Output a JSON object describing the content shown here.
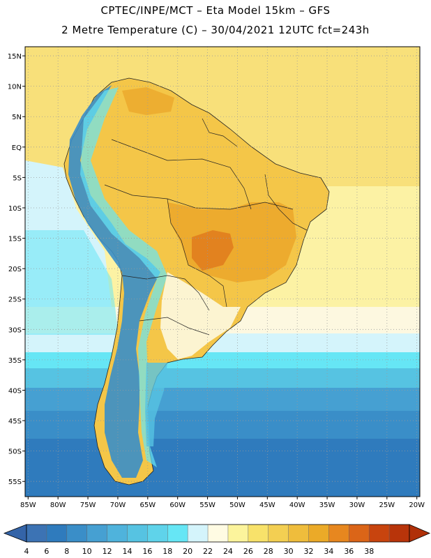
{
  "title_line1": "CPTEC/INPE/MCT –  Eta Model 15km – GFS",
  "title_line2": "2 Metre Temperature (C) – 30/04/2021 12UTC fct=243h",
  "lat_labels": [
    "15N",
    "10N",
    "5N",
    "EQ",
    "5S",
    "10S",
    "15S",
    "20S",
    "25S",
    "30S",
    "35S",
    "40S",
    "45S",
    "50S",
    "55S"
  ],
  "lat_values": [
    15,
    10,
    5,
    0,
    -5,
    -10,
    -15,
    -20,
    -25,
    -30,
    -35,
    -40,
    -45,
    -50,
    -55
  ],
  "lon_labels": [
    "85W",
    "80W",
    "75W",
    "70W",
    "65W",
    "60W",
    "55W",
    "50W",
    "45W",
    "40W",
    "35W",
    "30W",
    "25W",
    "20W"
  ],
  "lon_values": [
    -85,
    -80,
    -75,
    -70,
    -65,
    -60,
    -55,
    -50,
    -45,
    -40,
    -35,
    -30,
    -25,
    -20
  ],
  "extent": {
    "lon_min": -85.5,
    "lon_max": -19.5,
    "lat_min": -57.5,
    "lat_max": 16.5
  },
  "colorbar": {
    "ticks": [
      "4",
      "6",
      "8",
      "10",
      "12",
      "14",
      "16",
      "18",
      "20",
      "22",
      "24",
      "26",
      "28",
      "30",
      "32",
      "34",
      "36",
      "38"
    ],
    "colors": [
      "#3c73b4",
      "#2f7bbd",
      "#3a8ec8",
      "#46a0d2",
      "#4fb3dc",
      "#56c3e2",
      "#5fd3ea",
      "#66e6f5",
      "#d4f4fb",
      "#fffbe3",
      "#fcf49c",
      "#f8e26a",
      "#f3cf52",
      "#efbd3c",
      "#ebaa28",
      "#e7871f",
      "#db6518",
      "#c8440e",
      "#b8340a"
    ],
    "under_color": "#3464a8",
    "over_color": "#b03008"
  }
}
